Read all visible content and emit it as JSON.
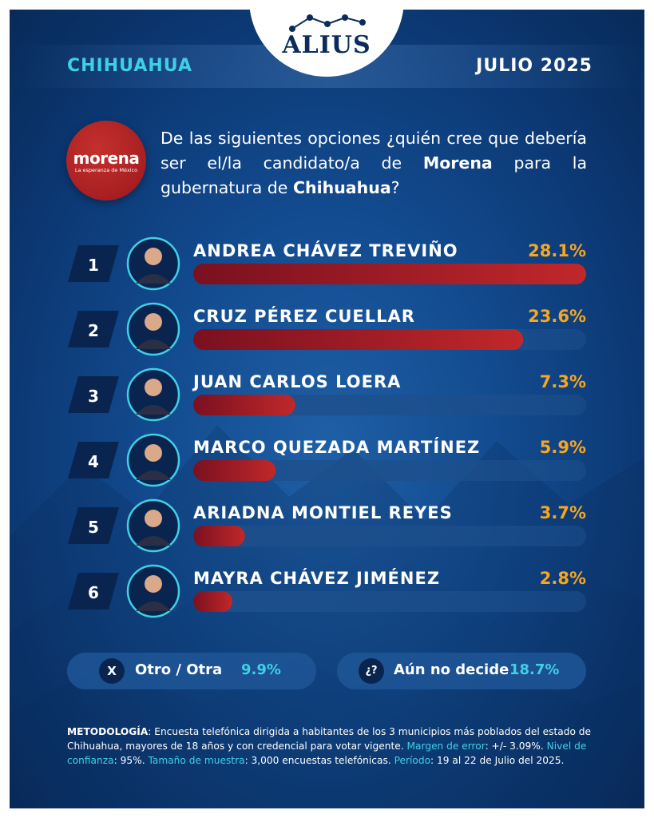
{
  "header": {
    "brand": "ALIUS",
    "state": "CHIHUAHUA",
    "period": "JULIO 2025"
  },
  "party": {
    "name": "morena",
    "tagline": "La esperanza de México",
    "color": "#a81f22"
  },
  "question": {
    "part1": "De las siguientes opciones ",
    "part2": "¿quién cree que debería ser el/la candidato/a de ",
    "part3": "Morena",
    "part4": " para la gubernatura de ",
    "part5": "Chihuahua",
    "part6": "?"
  },
  "colors": {
    "bar_fill": "#c0282a",
    "bar_track": "#1d4f8c",
    "value": "#f5a623",
    "accent": "#3fd0e6"
  },
  "chart_data": {
    "type": "bar",
    "orientation": "horizontal",
    "ranks": [
      "1",
      "2",
      "3",
      "4",
      "5",
      "6"
    ],
    "categories": [
      "ANDREA CHÁVEZ TREVIÑO",
      "CRUZ PÉREZ CUELLAR",
      "JUAN CARLOS LOERA",
      "MARCO QUEZADA MARTÍNEZ",
      "ARIADNA MONTIEL REYES",
      "MAYRA CHÁVEZ JIMÉNEZ"
    ],
    "values": [
      28.1,
      23.6,
      7.3,
      5.9,
      3.7,
      2.8
    ],
    "value_labels": [
      "28.1%",
      "23.6%",
      "7.3%",
      "5.9%",
      "3.7%",
      "2.8%"
    ],
    "xlim": [
      0,
      28.1
    ]
  },
  "other_options": [
    {
      "icon": "X",
      "label": "Otro / Otra",
      "value": "9.9%"
    },
    {
      "icon": "¿?",
      "label": "Aún no decide",
      "value": "18.7%"
    }
  ],
  "methodology": {
    "k1": "METODOLOGÍA",
    "t1": ": Encuesta telefónica dirigida a habitantes de los 3 municipios más poblados del estado de Chihuahua, mayores de 18 años y con credencial para votar vigente. ",
    "k2": "Margen de error",
    "t2": ": +/- 3.09%. ",
    "k3": "Nivel de confianza",
    "t3": ": 95%. ",
    "k4": "Tamaño de muestra",
    "t4": ": 3,000 encuestas telefónicas. ",
    "k5": "Período",
    "t5": ": 19 al 22 de Julio del 2025."
  }
}
